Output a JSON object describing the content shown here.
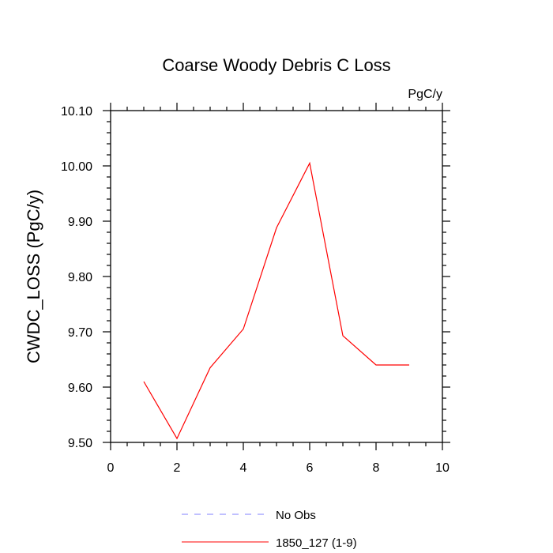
{
  "chart_data": {
    "type": "line",
    "title": "Coarse Woody Debris C Loss",
    "units_label": "PgC/y",
    "xlabel": "",
    "ylabel": "CWDC_LOSS  (PgC/y)",
    "xlim": [
      0,
      10
    ],
    "ylim": [
      9.5,
      10.1
    ],
    "x_ticks": [
      "0",
      "2",
      "4",
      "6",
      "8",
      "10"
    ],
    "y_ticks": [
      "9.50",
      "9.60",
      "9.70",
      "9.80",
      "9.90",
      "10.00",
      "10.10"
    ],
    "grid": false,
    "legend_position": "bottom",
    "series": [
      {
        "name": "No Obs",
        "color": "#8080ff",
        "dash": "dashed",
        "x": [],
        "y": []
      },
      {
        "name": "1850_127 (1-9)",
        "color": "#ff0000",
        "dash": "solid",
        "x": [
          1,
          2,
          3,
          4,
          5,
          6,
          7,
          8,
          9
        ],
        "y": [
          9.61,
          9.507,
          9.635,
          9.705,
          9.888,
          10.005,
          9.693,
          9.64,
          9.64
        ]
      }
    ]
  }
}
